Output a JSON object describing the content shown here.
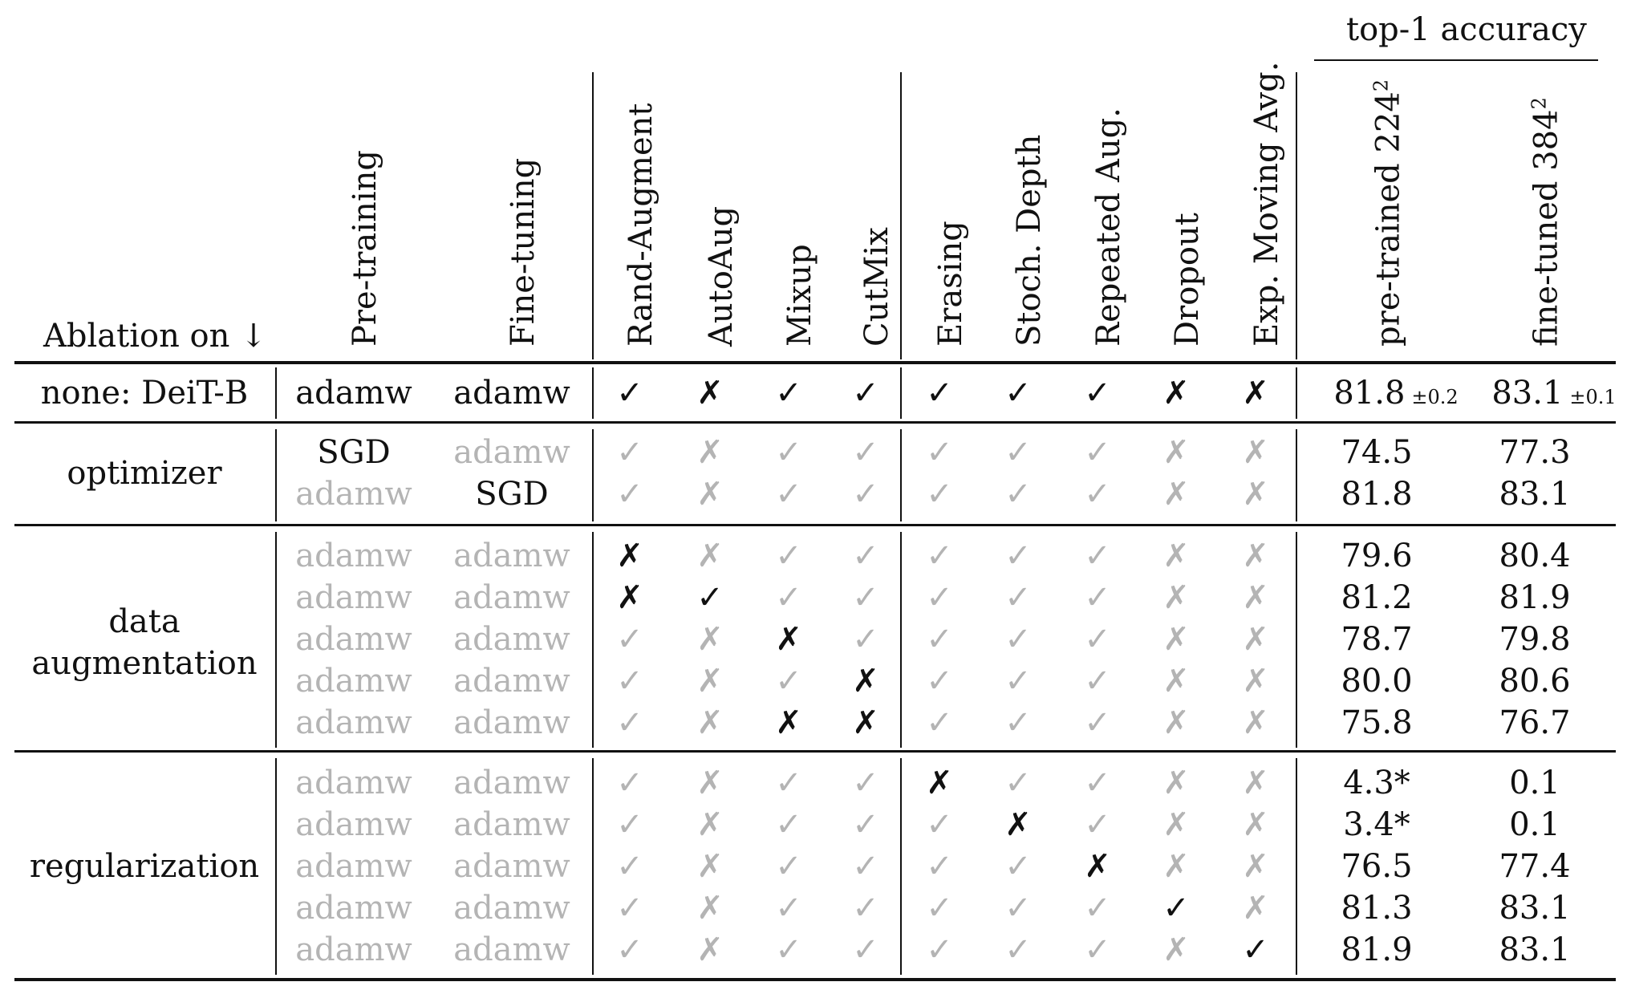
{
  "header": {
    "group_label": "top-1 accuracy",
    "ablation_label": "Ablation on ↓",
    "columns": [
      "Pre-training",
      "Fine-tuning",
      "Rand-Augment",
      "AutoAug",
      "Mixup",
      "CutMix",
      "Erasing",
      "Stoch. Depth",
      "Repeated Aug.",
      "Dropout",
      "Exp. Moving Avg.",
      "pre-trained 224",
      "fine-tuned 384"
    ],
    "acc_superscript": "2"
  },
  "groups": [
    {
      "label": "none: DeiT-B"
    },
    {
      "label": "optimizer"
    },
    {
      "label": "data\naugmentation"
    },
    {
      "label": "regularization"
    }
  ],
  "rows": [
    {
      "cells": [
        [
          "adamw",
          1
        ],
        [
          "adamw",
          1
        ],
        [
          "✓",
          1
        ],
        [
          "✗",
          1
        ],
        [
          "✓",
          1
        ],
        [
          "✓",
          1
        ],
        [
          "✓",
          1
        ],
        [
          "✓",
          1
        ],
        [
          "✓",
          1
        ],
        [
          "✗",
          1
        ],
        [
          "✗",
          1
        ],
        [
          "81.8",
          1
        ],
        [
          "83.1",
          1
        ]
      ],
      "pm": [
        "±0.2",
        "±0.1"
      ]
    },
    {
      "cells": [
        [
          "SGD",
          1
        ],
        [
          "adamw",
          0
        ],
        [
          "✓",
          0
        ],
        [
          "✗",
          0
        ],
        [
          "✓",
          0
        ],
        [
          "✓",
          0
        ],
        [
          "✓",
          0
        ],
        [
          "✓",
          0
        ],
        [
          "✓",
          0
        ],
        [
          "✗",
          0
        ],
        [
          "✗",
          0
        ],
        [
          "74.5",
          1
        ],
        [
          "77.3",
          1
        ]
      ]
    },
    {
      "cells": [
        [
          "adamw",
          0
        ],
        [
          "SGD",
          1
        ],
        [
          "✓",
          0
        ],
        [
          "✗",
          0
        ],
        [
          "✓",
          0
        ],
        [
          "✓",
          0
        ],
        [
          "✓",
          0
        ],
        [
          "✓",
          0
        ],
        [
          "✓",
          0
        ],
        [
          "✗",
          0
        ],
        [
          "✗",
          0
        ],
        [
          "81.8",
          1
        ],
        [
          "83.1",
          1
        ]
      ]
    },
    {
      "cells": [
        [
          "adamw",
          0
        ],
        [
          "adamw",
          0
        ],
        [
          "✗",
          1
        ],
        [
          "✗",
          0
        ],
        [
          "✓",
          0
        ],
        [
          "✓",
          0
        ],
        [
          "✓",
          0
        ],
        [
          "✓",
          0
        ],
        [
          "✓",
          0
        ],
        [
          "✗",
          0
        ],
        [
          "✗",
          0
        ],
        [
          "79.6",
          1
        ],
        [
          "80.4",
          1
        ]
      ]
    },
    {
      "cells": [
        [
          "adamw",
          0
        ],
        [
          "adamw",
          0
        ],
        [
          "✗",
          1
        ],
        [
          "✓",
          1
        ],
        [
          "✓",
          0
        ],
        [
          "✓",
          0
        ],
        [
          "✓",
          0
        ],
        [
          "✓",
          0
        ],
        [
          "✓",
          0
        ],
        [
          "✗",
          0
        ],
        [
          "✗",
          0
        ],
        [
          "81.2",
          1
        ],
        [
          "81.9",
          1
        ]
      ]
    },
    {
      "cells": [
        [
          "adamw",
          0
        ],
        [
          "adamw",
          0
        ],
        [
          "✓",
          0
        ],
        [
          "✗",
          0
        ],
        [
          "✗",
          1
        ],
        [
          "✓",
          0
        ],
        [
          "✓",
          0
        ],
        [
          "✓",
          0
        ],
        [
          "✓",
          0
        ],
        [
          "✗",
          0
        ],
        [
          "✗",
          0
        ],
        [
          "78.7",
          1
        ],
        [
          "79.8",
          1
        ]
      ]
    },
    {
      "cells": [
        [
          "adamw",
          0
        ],
        [
          "adamw",
          0
        ],
        [
          "✓",
          0
        ],
        [
          "✗",
          0
        ],
        [
          "✓",
          0
        ],
        [
          "✗",
          1
        ],
        [
          "✓",
          0
        ],
        [
          "✓",
          0
        ],
        [
          "✓",
          0
        ],
        [
          "✗",
          0
        ],
        [
          "✗",
          0
        ],
        [
          "80.0",
          1
        ],
        [
          "80.6",
          1
        ]
      ]
    },
    {
      "cells": [
        [
          "adamw",
          0
        ],
        [
          "adamw",
          0
        ],
        [
          "✓",
          0
        ],
        [
          "✗",
          0
        ],
        [
          "✗",
          1
        ],
        [
          "✗",
          1
        ],
        [
          "✓",
          0
        ],
        [
          "✓",
          0
        ],
        [
          "✓",
          0
        ],
        [
          "✗",
          0
        ],
        [
          "✗",
          0
        ],
        [
          "75.8",
          1
        ],
        [
          "76.7",
          1
        ]
      ]
    },
    {
      "cells": [
        [
          "adamw",
          0
        ],
        [
          "adamw",
          0
        ],
        [
          "✓",
          0
        ],
        [
          "✗",
          0
        ],
        [
          "✓",
          0
        ],
        [
          "✓",
          0
        ],
        [
          "✗",
          1
        ],
        [
          "✓",
          0
        ],
        [
          "✓",
          0
        ],
        [
          "✗",
          0
        ],
        [
          "✗",
          0
        ],
        [
          "4.3*",
          1
        ],
        [
          "0.1",
          1
        ]
      ]
    },
    {
      "cells": [
        [
          "adamw",
          0
        ],
        [
          "adamw",
          0
        ],
        [
          "✓",
          0
        ],
        [
          "✗",
          0
        ],
        [
          "✓",
          0
        ],
        [
          "✓",
          0
        ],
        [
          "✓",
          0
        ],
        [
          "✗",
          1
        ],
        [
          "✓",
          0
        ],
        [
          "✗",
          0
        ],
        [
          "✗",
          0
        ],
        [
          "3.4*",
          1
        ],
        [
          "0.1",
          1
        ]
      ]
    },
    {
      "cells": [
        [
          "adamw",
          0
        ],
        [
          "adamw",
          0
        ],
        [
          "✓",
          0
        ],
        [
          "✗",
          0
        ],
        [
          "✓",
          0
        ],
        [
          "✓",
          0
        ],
        [
          "✓",
          0
        ],
        [
          "✓",
          0
        ],
        [
          "✗",
          1
        ],
        [
          "✗",
          0
        ],
        [
          "✗",
          0
        ],
        [
          "76.5",
          1
        ],
        [
          "77.4",
          1
        ]
      ]
    },
    {
      "cells": [
        [
          "adamw",
          0
        ],
        [
          "adamw",
          0
        ],
        [
          "✓",
          0
        ],
        [
          "✗",
          0
        ],
        [
          "✓",
          0
        ],
        [
          "✓",
          0
        ],
        [
          "✓",
          0
        ],
        [
          "✓",
          0
        ],
        [
          "✓",
          0
        ],
        [
          "✓",
          1
        ],
        [
          "✗",
          0
        ],
        [
          "81.3",
          1
        ],
        [
          "83.1",
          1
        ]
      ]
    },
    {
      "cells": [
        [
          "adamw",
          0
        ],
        [
          "adamw",
          0
        ],
        [
          "✓",
          0
        ],
        [
          "✗",
          0
        ],
        [
          "✓",
          0
        ],
        [
          "✓",
          0
        ],
        [
          "✓",
          0
        ],
        [
          "✓",
          0
        ],
        [
          "✓",
          0
        ],
        [
          "✗",
          0
        ],
        [
          "✓",
          1
        ],
        [
          "81.9",
          1
        ],
        [
          "83.1",
          1
        ]
      ]
    }
  ],
  "colors": {
    "ink": "#111111",
    "dim": "#b4b4b4"
  }
}
